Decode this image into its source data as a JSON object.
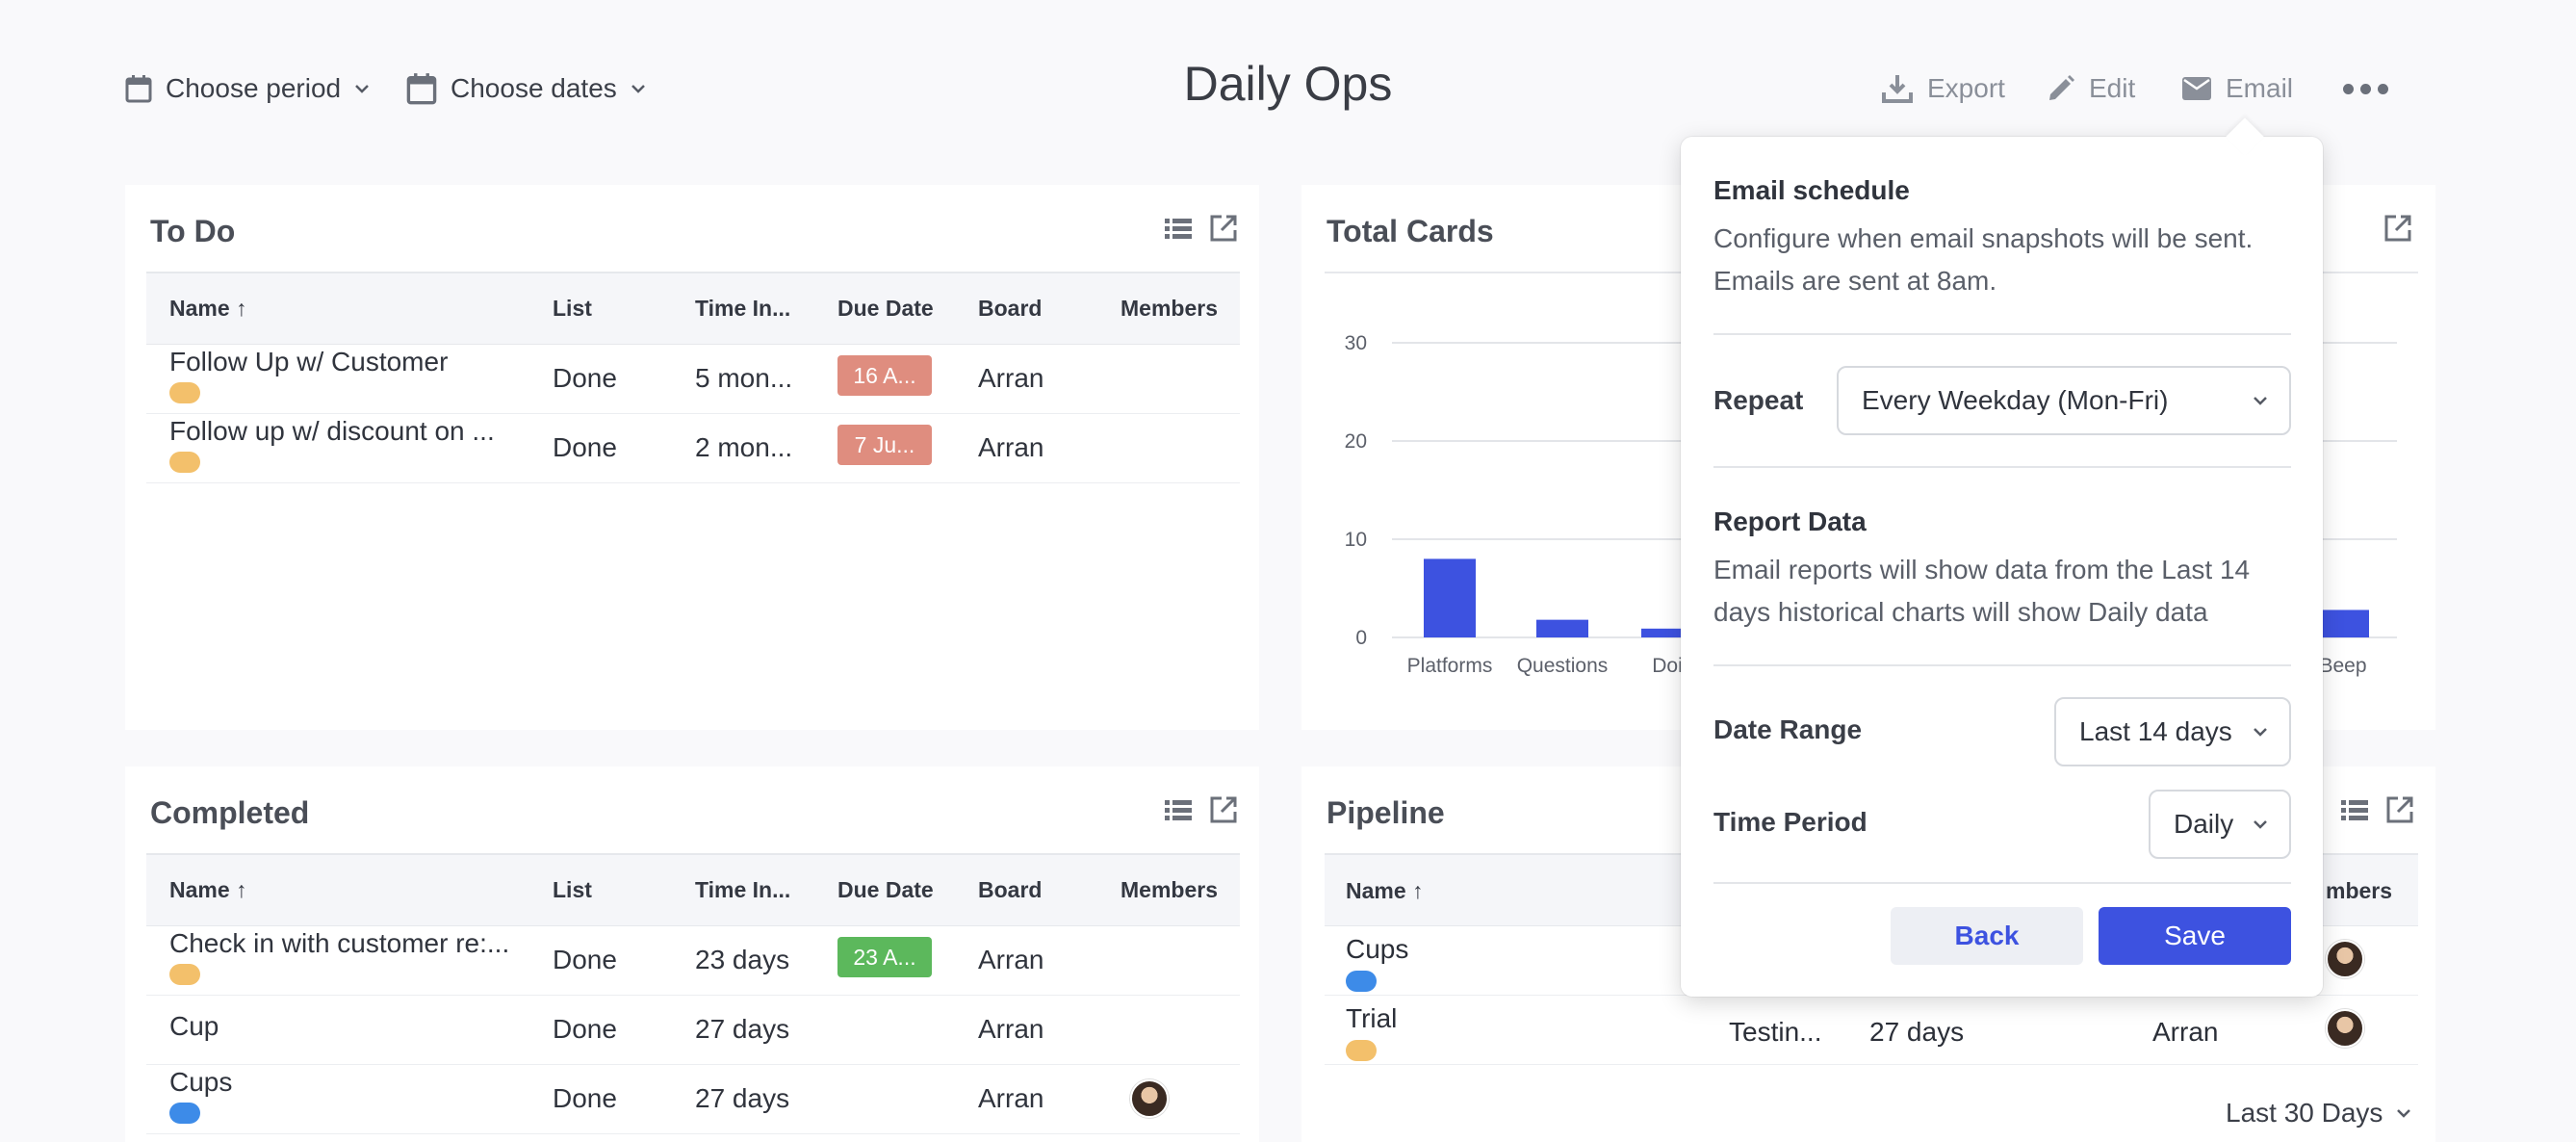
{
  "header": {
    "period_label": "Choose period",
    "dates_label": "Choose dates",
    "title": "Daily Ops",
    "export_label": "Export",
    "edit_label": "Edit",
    "email_label": "Email"
  },
  "todo": {
    "title": "To Do",
    "columns": [
      "Name ↑",
      "List",
      "Time In...",
      "Due Date",
      "Board",
      "Members"
    ],
    "rows": [
      {
        "name": "Follow Up w/ Customer",
        "list": "Done",
        "time": "5 mon...",
        "due": "16 A...",
        "board": "Arran",
        "dot_color": "#f3c06b",
        "due_color": "#df8d7f"
      },
      {
        "name": "Follow up w/ discount on ...",
        "list": "Done",
        "time": "2 mon...",
        "due": "7 Ju...",
        "board": "Arran",
        "dot_color": "#f3c06b",
        "due_color": "#df8d7f"
      }
    ]
  },
  "total_cards": {
    "title": "Total Cards"
  },
  "chart_data": {
    "type": "bar",
    "title": "Total Cards",
    "categories": [
      "Platforms",
      "Questions",
      "Doi",
      "Beep"
    ],
    "values": [
      8,
      1.8,
      0.9,
      2.8
    ],
    "ylim": [
      0,
      30
    ],
    "yticks": [
      "0",
      "10",
      "20",
      "30"
    ],
    "grid": true,
    "color": "#3d52e0",
    "category_labels": [
      "Platforms",
      "Questions",
      "Doi",
      "Beep"
    ]
  },
  "completed": {
    "title": "Completed",
    "columns": [
      "Name ↑",
      "List",
      "Time In...",
      "Due Date",
      "Board",
      "Members"
    ],
    "rows": [
      {
        "name": "Check in with customer re:...",
        "list": "Done",
        "time": "23 days",
        "due": "23 A...",
        "board": "Arran",
        "dot_color": "#f3c06b",
        "due_color": "#5cb85c"
      },
      {
        "name": "Cup",
        "list": "Done",
        "time": "27 days",
        "due": "",
        "board": "Arran",
        "dot_color": "",
        "due_color": ""
      },
      {
        "name": "Cups",
        "list": "Done",
        "time": "27 days",
        "due": "",
        "board": "Arran",
        "dot_color": "#3d8be8",
        "due_color": "",
        "avatar": true
      }
    ]
  },
  "pipeline": {
    "title": "Pipeline",
    "columns": [
      "Name ↑",
      "mbers"
    ],
    "rows": [
      {
        "name": "Cups",
        "list": "",
        "time": "",
        "board": "",
        "dot_color": "#3d8be8"
      },
      {
        "name": "Trial",
        "list": "Testin...",
        "time": "27 days",
        "board": "Arran",
        "dot_color": "#f3c06b"
      }
    ],
    "footer_range": "Last 30 Days"
  },
  "email_popup": {
    "schedule_title": "Email schedule",
    "schedule_desc": "Configure when email snapshots will be sent. Emails are sent at 8am.",
    "repeat_label": "Repeat",
    "repeat_value": "Every Weekday (Mon-Fri)",
    "report_title": "Report Data",
    "report_desc": "Email reports will show data from the Last 14 days historical charts will show Daily data",
    "date_range_label": "Date Range",
    "date_range_value": "Last 14 days",
    "time_period_label": "Time Period",
    "time_period_value": "Daily",
    "back_label": "Back",
    "save_label": "Save"
  },
  "colors": {
    "accent": "#3d52e0",
    "secondary_button": "#edeff4"
  }
}
